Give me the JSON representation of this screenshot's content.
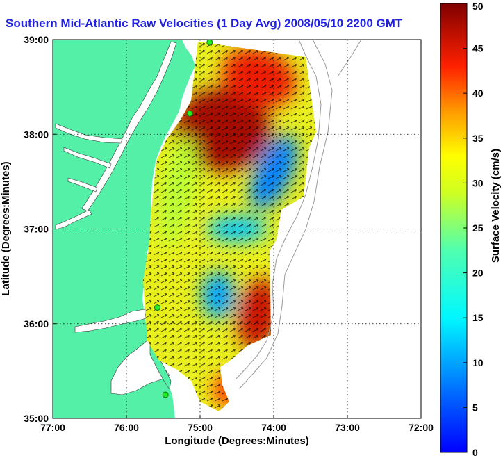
{
  "chart_data": {
    "type": "heatmap",
    "title": "Southern Mid-Atlantic Raw Velocities (1 Day Avg) 2008/05/10 2200 GMT",
    "xlabel": "Longitude (Degrees:Minutes)",
    "ylabel": "Latitude (Degrees:Minutes)",
    "xlim": [
      -77,
      -72
    ],
    "ylim": [
      35,
      39
    ],
    "x_ticks": [
      -77,
      -76,
      -75,
      -74,
      -73,
      -72
    ],
    "x_tick_labels": [
      "77:00",
      "76:00",
      "75:00",
      "74:00",
      "73:00",
      "72:00"
    ],
    "y_ticks": [
      35,
      36,
      37,
      38,
      39
    ],
    "y_tick_labels": [
      "35:00",
      "36:00",
      "37:00",
      "38:00",
      "39:00"
    ],
    "grid": true,
    "colorbar": {
      "label": "Surface Velocity (cm/s)",
      "min": 0,
      "max": 50,
      "ticks": [
        0,
        5,
        10,
        15,
        20,
        25,
        30,
        35,
        40,
        45,
        50
      ],
      "colormap": "jet"
    },
    "land_color": "#55f0a8",
    "stations": [
      {
        "lon": -74.87,
        "lat": 38.97
      },
      {
        "lon": -75.14,
        "lat": 38.22
      },
      {
        "lon": -75.58,
        "lat": 36.17
      },
      {
        "lon": -75.47,
        "lat": 35.25
      }
    ],
    "velocity_features": [
      {
        "region": "northern lobe core",
        "lon": -74.7,
        "lat": 38.05,
        "speed": 48
      },
      {
        "region": "northeast rim",
        "lon": -74.2,
        "lat": 38.6,
        "speed": 44
      },
      {
        "region": "western coastal band",
        "lon": -75.3,
        "lat": 37.4,
        "speed": 28
      },
      {
        "region": "offshore slow zone",
        "lon": -74.0,
        "lat": 37.6,
        "speed": 8
      },
      {
        "region": "central slow zone",
        "lon": -74.5,
        "lat": 37.0,
        "speed": 12
      },
      {
        "region": "southern eddy center",
        "lon": -74.75,
        "lat": 36.3,
        "speed": 10
      },
      {
        "region": "southeast jet",
        "lon": -74.2,
        "lat": 36.1,
        "speed": 46
      },
      {
        "region": "southern tip",
        "lon": -74.6,
        "lat": 35.3,
        "speed": 42
      }
    ]
  }
}
